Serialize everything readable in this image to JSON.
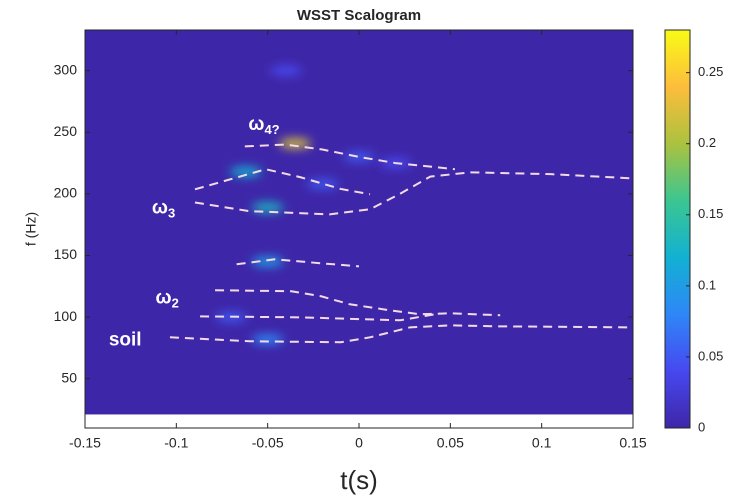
{
  "chart_data": {
    "type": "scalogram",
    "title": "WSST Scalogram",
    "xlabel": "t(s)",
    "ylabel": "f (Hz)",
    "xlim": [
      -0.15,
      0.15
    ],
    "xticks": [
      -0.15,
      -0.1,
      -0.05,
      0,
      0.05,
      0.1,
      0.15
    ],
    "ylim": [
      10,
      333
    ],
    "yticks": [
      50,
      100,
      150,
      200,
      250,
      300
    ],
    "clim": [
      0,
      0.28
    ],
    "cticks": [
      0,
      0.05,
      0.1,
      0.15,
      0.2,
      0.25
    ],
    "colormap": [
      "#3e26a8",
      "#4748f0",
      "#2e87f7",
      "#12b1d2",
      "#3bc691",
      "#abc23f",
      "#fdbd3c",
      "#f9fb15"
    ],
    "heatmap_flim": [
      21,
      333
    ],
    "hotspots": {
      "x": [
        -0.035,
        -0.05,
        -0.062,
        -0.05,
        -0.05,
        -0.02,
        -0.04,
        0.0,
        -0.07,
        0.02
      ],
      "y": [
        241,
        189,
        218,
        145,
        82,
        208,
        300,
        230,
        100,
        225
      ],
      "values": [
        0.22,
        0.13,
        0.12,
        0.1,
        0.08,
        0.05,
        0.04,
        0.05,
        0.05,
        0.04
      ]
    },
    "ridges": {
      "color": "#f3dbe6",
      "series": [
        {
          "x": [
            -0.0625,
            -0.04,
            -0.02,
            0,
            0.02,
            0.04,
            0.0525
          ],
          "y": [
            238.6,
            240,
            236,
            230,
            225,
            222,
            220
          ]
        },
        {
          "x": [
            -0.0898,
            -0.051,
            -0.032,
            -0.01,
            0.006
          ],
          "y": [
            203.7,
            220,
            213.5,
            204,
            199.7
          ]
        },
        {
          "x": [
            -0.0898,
            -0.06,
            -0.016,
            0.006,
            0.0224,
            0.039,
            0.061,
            0.105,
            0.1484
          ],
          "y": [
            193,
            186,
            183.4,
            187.5,
            200,
            214,
            217.5,
            216,
            212.7
          ]
        },
        {
          "x": [
            -0.067,
            -0.046,
            -0.021,
            0
          ],
          "y": [
            142.9,
            146.9,
            143.7,
            141.2
          ]
        },
        {
          "x": [
            -0.0788,
            -0.037,
            -0.021,
            -0.005,
            0.017,
            0.0334,
            0.05,
            0.0773
          ],
          "y": [
            121.8,
            121,
            117,
            110.4,
            105.5,
            102.3,
            103.1,
            101.5
          ]
        },
        {
          "x": [
            -0.087,
            -0.032,
            0.0224,
            0.0443
          ],
          "y": [
            100.6,
            99.8,
            97.4,
            103
          ]
        },
        {
          "x": [
            -0.1035,
            -0.06,
            -0.01,
            0.006,
            0.028,
            0.05,
            0.077,
            0.148
          ],
          "y": [
            83.6,
            80.4,
            79.6,
            83.6,
            91.7,
            93.3,
            92.5,
            91.7
          ]
        }
      ]
    },
    "annotations": [
      {
        "text": "ω",
        "sub": "4?",
        "x": -0.052,
        "y": 256
      },
      {
        "text": "ω",
        "sub": "3",
        "x": -0.107,
        "y": 188
      },
      {
        "text": "ω",
        "sub": "2",
        "x": -0.105,
        "y": 115
      },
      {
        "text": "soil",
        "x": -0.128,
        "y": 81
      }
    ]
  }
}
